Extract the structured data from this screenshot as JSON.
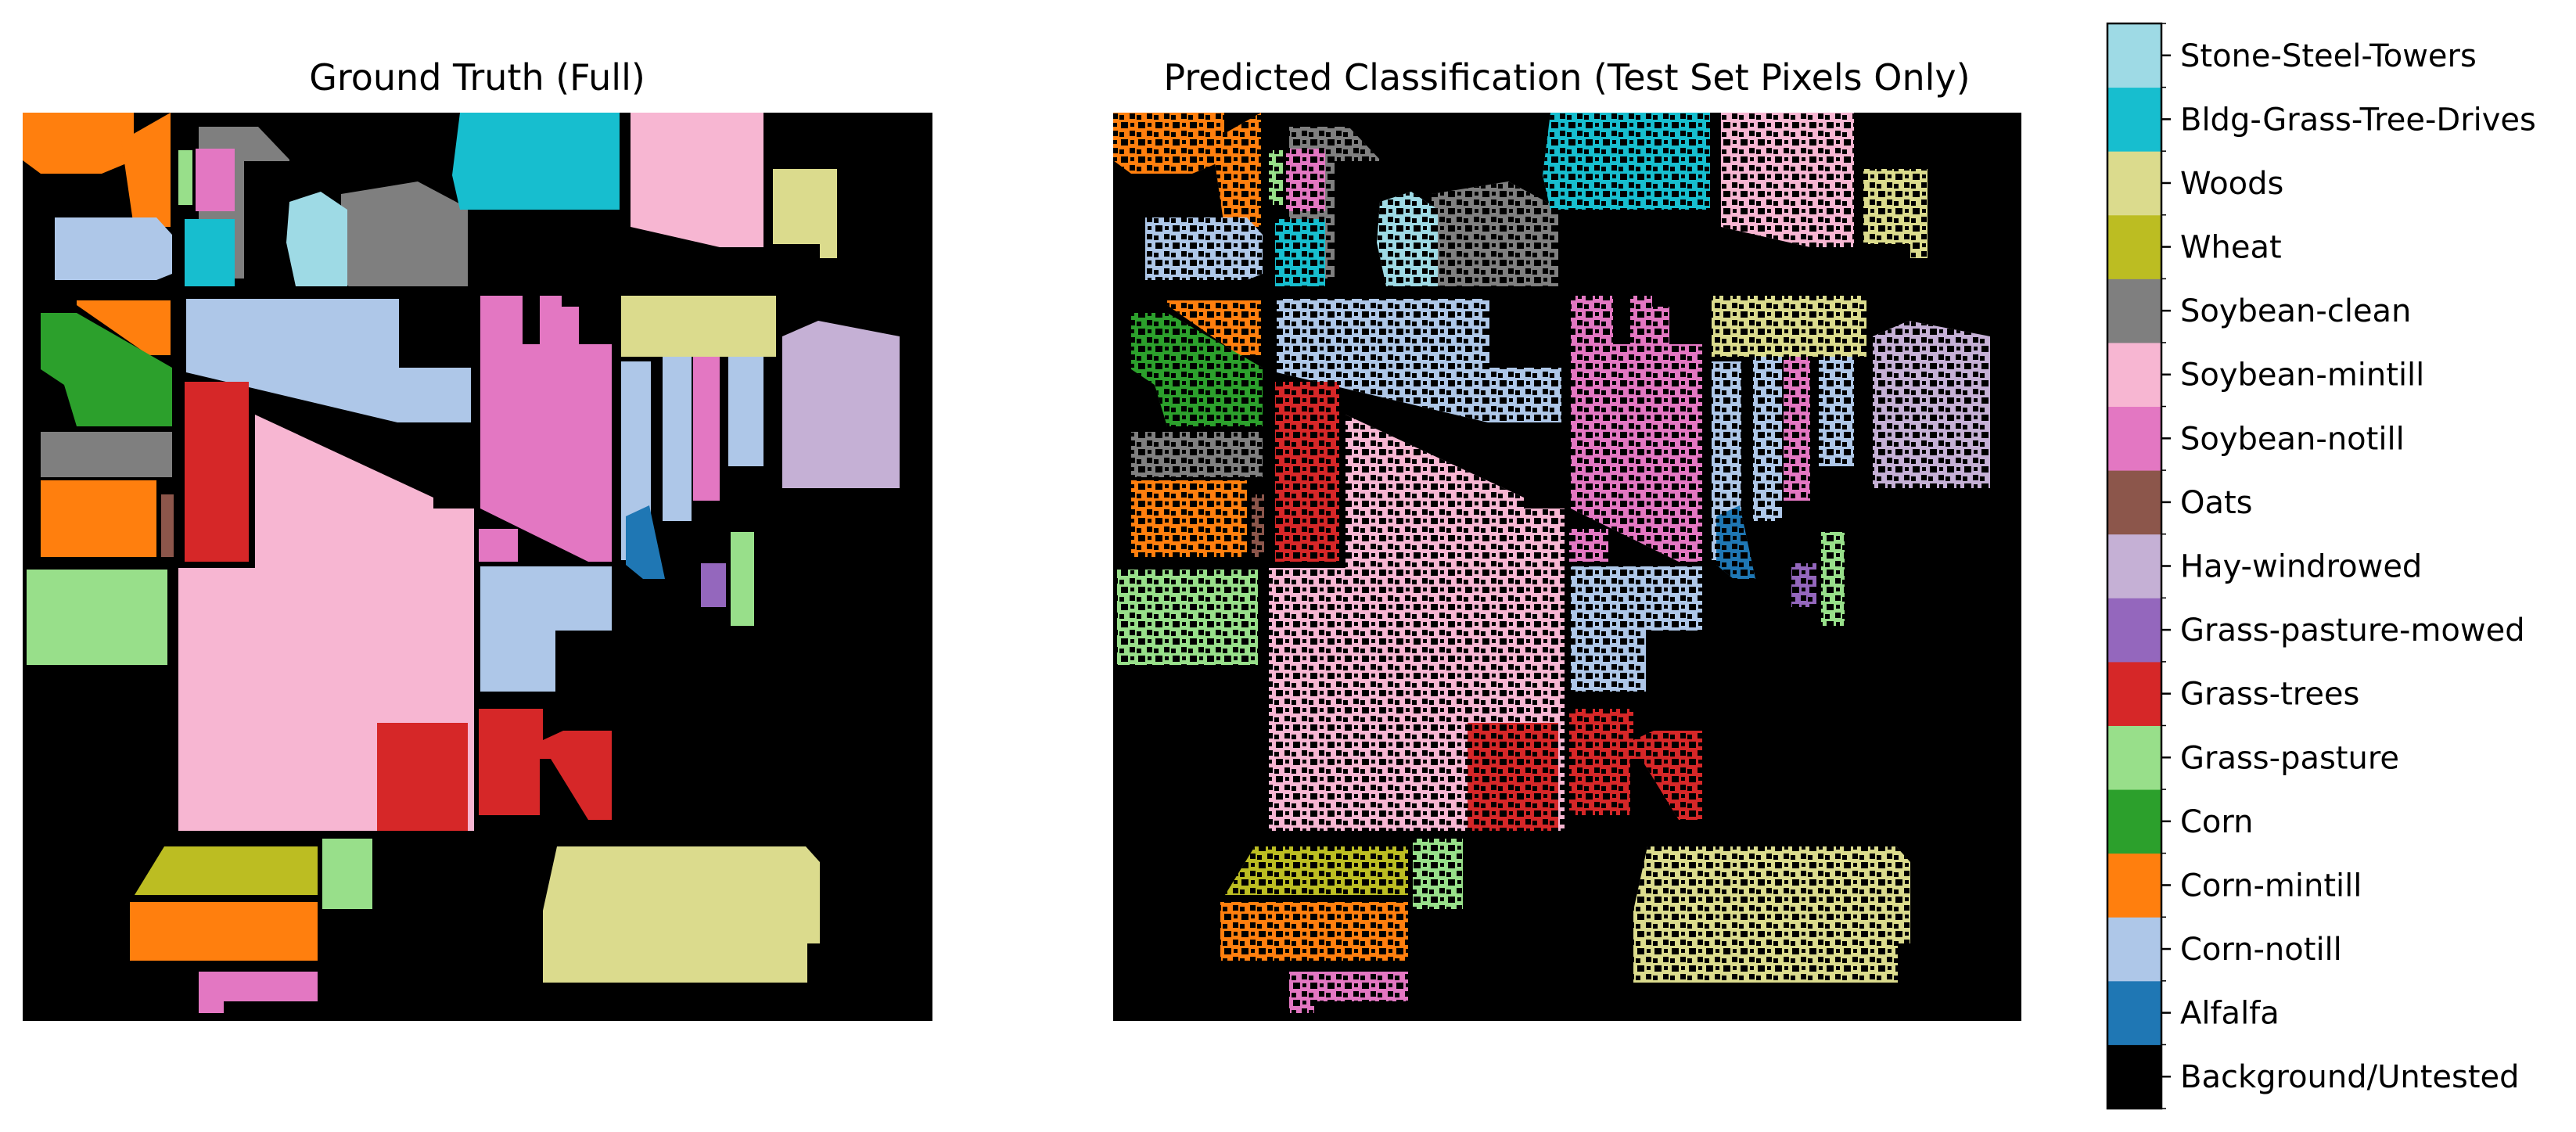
{
  "chart_data": [
    {
      "type": "heatmap",
      "title": "Ground Truth (Full)",
      "xlabel": "",
      "ylabel": "",
      "grid": false,
      "axes_visible": false,
      "background_class": "Background/Untested"
    },
    {
      "type": "heatmap",
      "title": "Predicted Classification (Test Set Pixels Only)",
      "xlabel": "",
      "ylabel": "",
      "grid": false,
      "axes_visible": false,
      "background_class": "Background/Untested"
    }
  ],
  "colorbar": {
    "orientation": "vertical",
    "placement": "right",
    "classes": [
      {
        "index": 0,
        "label": "Background/Untested",
        "color": "#000000"
      },
      {
        "index": 1,
        "label": "Alfalfa",
        "color": "#1f77b4"
      },
      {
        "index": 2,
        "label": "Corn-notill",
        "color": "#aec7e8"
      },
      {
        "index": 3,
        "label": "Corn-mintill",
        "color": "#ff7f0e"
      },
      {
        "index": 4,
        "label": "Corn",
        "color": "#2ca02c"
      },
      {
        "index": 5,
        "label": "Grass-pasture",
        "color": "#98df8a"
      },
      {
        "index": 6,
        "label": "Grass-trees",
        "color": "#d62728"
      },
      {
        "index": 7,
        "label": "Grass-pasture-mowed",
        "color": "#9467bd"
      },
      {
        "index": 8,
        "label": "Hay-windrowed",
        "color": "#c5b0d5"
      },
      {
        "index": 9,
        "label": "Oats",
        "color": "#8c564b"
      },
      {
        "index": 10,
        "label": "Soybean-notill",
        "color": "#e377c2"
      },
      {
        "index": 11,
        "label": "Soybean-mintill",
        "color": "#f7b6d2"
      },
      {
        "index": 12,
        "label": "Soybean-clean",
        "color": "#7f7f7f"
      },
      {
        "index": 13,
        "label": "Wheat",
        "color": "#bcbd22"
      },
      {
        "index": 14,
        "label": "Woods",
        "color": "#dbdb8d"
      },
      {
        "index": 15,
        "label": "Bldg-Grass-Tree-Drives",
        "color": "#17becf"
      },
      {
        "index": 16,
        "label": "Stone-Steel-Towers",
        "color": "#9edae5"
      }
    ]
  }
}
